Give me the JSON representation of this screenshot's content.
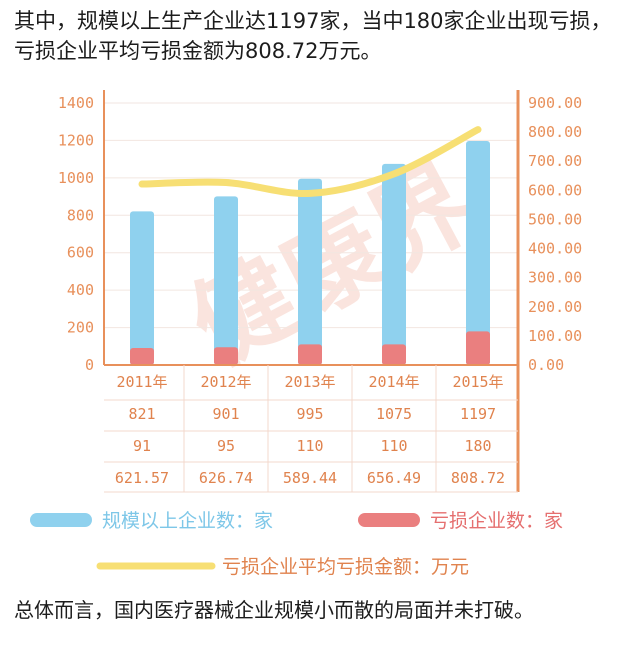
{
  "headline": "其中，规模以上生产企业达1197家，当中180家企业出现亏损，亏损企业平均亏损金额为808.72万元。",
  "footer": "总体而言，国内医疗器械企业规模小而散的局面并未打破。",
  "watermark": "健康界",
  "colors": {
    "bar_large": "#8fd1ee",
    "bar_loss": "#ea7f7f",
    "line_avg": "#f7df74",
    "axis": "#e8905b",
    "grid": "#f2e6e0"
  },
  "chart_data": {
    "type": "bar",
    "categories": [
      "2011年",
      "2012年",
      "2013年",
      "2014年",
      "2015年"
    ],
    "y_left": {
      "ticks": [
        "1400",
        "1200",
        "1000",
        "800",
        "600",
        "400",
        "200",
        "0"
      ],
      "ylim": [
        0,
        1400
      ]
    },
    "y_right": {
      "ticks": [
        "900.00",
        "800.00",
        "700.00",
        "600.00",
        "500.00",
        "400.00",
        "300.00",
        "200.00",
        "100.00",
        "0.00"
      ],
      "ylim": [
        0,
        900
      ]
    },
    "series": [
      {
        "name": "规模以上企业数：家",
        "type": "bar",
        "axis": "left",
        "values": [
          821,
          901,
          995,
          1075,
          1197
        ],
        "labels": [
          "821",
          "901",
          "995",
          "1075",
          "1197"
        ]
      },
      {
        "name": "亏损企业数：家",
        "type": "bar",
        "axis": "left",
        "values": [
          91,
          95,
          110,
          110,
          180
        ],
        "labels": [
          "91",
          "95",
          "110",
          "110",
          "180"
        ]
      },
      {
        "name": "亏损企业平均亏损金额：万元",
        "type": "line",
        "axis": "right",
        "values": [
          621.57,
          626.74,
          589.44,
          656.49,
          808.72
        ],
        "labels": [
          "621.57",
          "626.74",
          "589.44",
          "656.49",
          "808.72"
        ]
      }
    ],
    "grid": true,
    "legend_position": "bottom"
  }
}
